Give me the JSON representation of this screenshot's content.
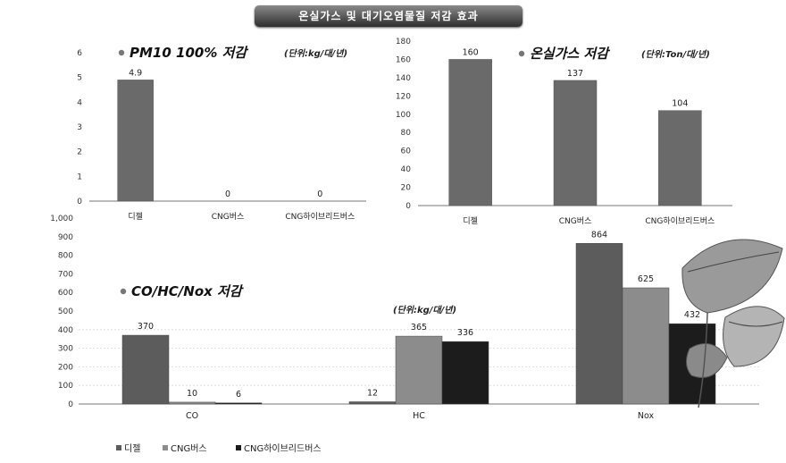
{
  "banner": "온실가스 및 대기오염물질 저감 효과",
  "chart_data": [
    {
      "type": "bar",
      "title": "PM10 100% 저감",
      "unit": "(단위:kg/대/년)",
      "categories": [
        "디젤",
        "CNG버스",
        "CNG하이브리드버스"
      ],
      "values": [
        4.9,
        0,
        0
      ],
      "value_labels": [
        "4.9",
        "0",
        "0"
      ],
      "ylim": [
        0,
        6
      ],
      "yticks": [
        0,
        1,
        2,
        3,
        4,
        5,
        6
      ],
      "ytick_labels": [
        "0",
        "1",
        "2",
        "3",
        "4",
        "5",
        "6"
      ],
      "bar_color": "#6a6a6a"
    },
    {
      "type": "bar",
      "title": "온실가스 저감",
      "unit": "(단위:Ton/대/년)",
      "categories": [
        "디젤",
        "CNG버스",
        "CNG하이브리드버스"
      ],
      "values": [
        160,
        137,
        104
      ],
      "value_labels": [
        "160",
        "137",
        "104"
      ],
      "ylim": [
        0,
        180
      ],
      "yticks": [
        0,
        20,
        40,
        60,
        80,
        100,
        120,
        140,
        160,
        180
      ],
      "ytick_labels": [
        "0",
        "20",
        "40",
        "60",
        "80",
        "100",
        "120",
        "140",
        "160",
        "180"
      ],
      "bar_color": "#6a6a6a"
    },
    {
      "type": "bar",
      "title": "CO/HC/Nox 저감",
      "unit": "(단위:kg/대/년)",
      "categories": [
        "CO",
        "HC",
        "Nox"
      ],
      "series": [
        {
          "name": "디젤",
          "values": [
            370,
            12,
            864
          ],
          "labels": [
            "370",
            "12",
            "864"
          ],
          "color": "#5c5c5c"
        },
        {
          "name": "CNG버스",
          "values": [
            10,
            365,
            625
          ],
          "labels": [
            "10",
            "365",
            "625"
          ],
          "color": "#8c8c8c"
        },
        {
          "name": "CNG하이브리드버스",
          "values": [
            6,
            336,
            432
          ],
          "labels": [
            "6",
            "336",
            "432"
          ],
          "color": "#1c1c1c"
        }
      ],
      "ylim": [
        0,
        1000
      ],
      "yticks": [
        0,
        100,
        200,
        300,
        400,
        500,
        600,
        700,
        800,
        900,
        1000
      ],
      "ytick_labels": [
        "0",
        "100",
        "200",
        "300",
        "400",
        "500",
        "600",
        "700",
        "800",
        "900",
        "1,000"
      ],
      "legend_position": "bottom-left"
    }
  ]
}
